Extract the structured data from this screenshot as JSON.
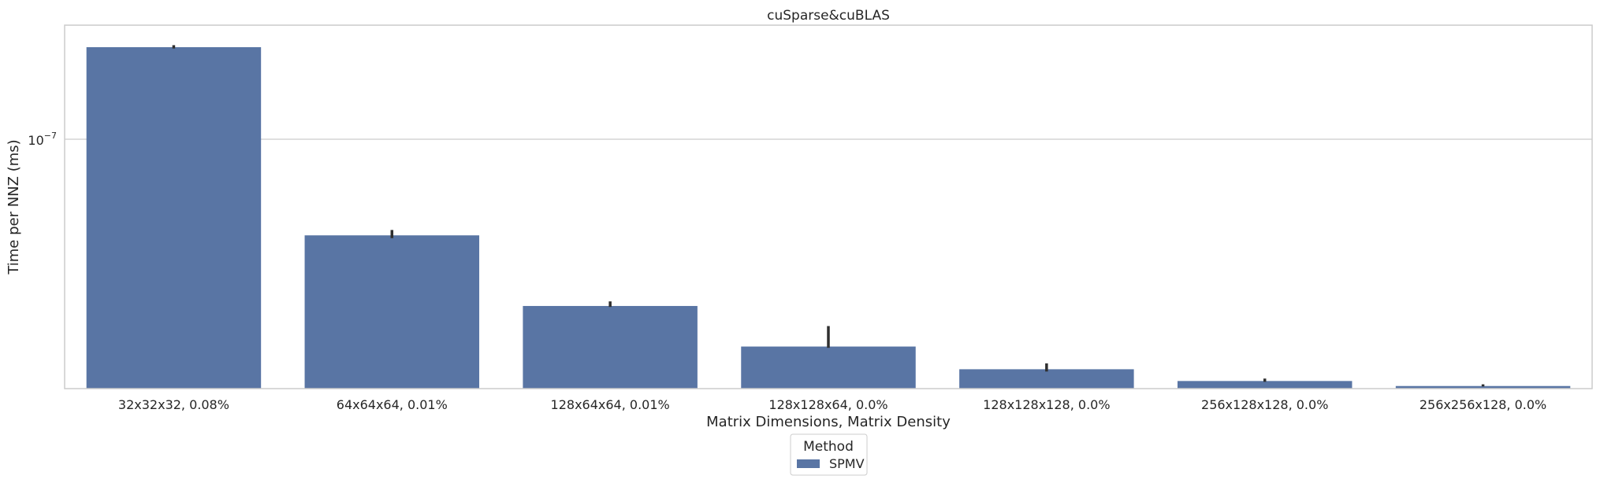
{
  "chart_data": {
    "type": "bar",
    "title": "cuSparse&cuBLAS",
    "xlabel": "Matrix Dimensions, Matrix Density",
    "ylabel": "Time per NNZ (ms)",
    "yscale": "log",
    "ylim": [
      1.53e-08,
      2.36e-07
    ],
    "yticks": [
      1e-07
    ],
    "ytick_labels": [
      "10",
      "−7"
    ],
    "grid": true,
    "categories": [
      "32x32x32, 0.08%",
      "64x64x64, 0.01%",
      "128x64x64, 0.01%",
      "128x128x64, 0.0%",
      "128x128x128, 0.0%",
      "256x128x128, 0.0%",
      "256x256x128, 0.0%"
    ],
    "series": [
      {
        "name": "SPMV",
        "color": "#5975a4",
        "values": [
          2e-07,
          4.85e-08,
          2.85e-08,
          2.1e-08,
          1.77e-08,
          1.62e-08,
          1.56e-08
        ],
        "error_low": [
          1.98e-07,
          4.75e-08,
          2.83e-08,
          2.08e-08,
          1.74e-08,
          1.61e-08,
          1.555e-08
        ],
        "error_high": [
          2.03e-07,
          5.05e-08,
          2.95e-08,
          2.45e-08,
          1.85e-08,
          1.65e-08,
          1.58e-08
        ]
      }
    ],
    "legend": {
      "title": "Method",
      "placement": "bottom-center"
    }
  }
}
